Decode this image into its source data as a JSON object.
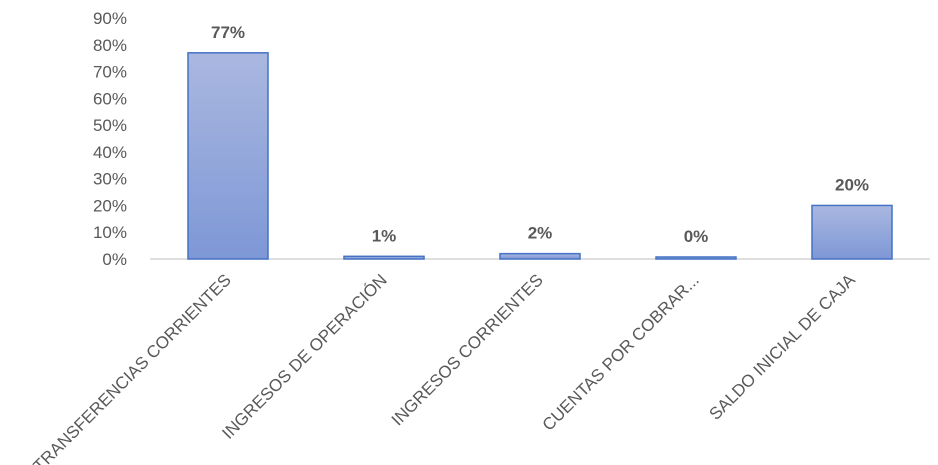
{
  "chart_data": {
    "type": "bar",
    "title": "",
    "xlabel": "",
    "ylabel": "",
    "categories": [
      "TRANSFERENCIAS CORRIENTES",
      "INGRESOS DE OPERACIÓN",
      "INGRESOS CORRIENTES",
      "CUENTAS POR COBRAR...",
      "SALDO INICIAL DE CAJA"
    ],
    "values": [
      77,
      1,
      2,
      0,
      20
    ],
    "data_labels": [
      "77%",
      "1%",
      "2%",
      "0%",
      "20%"
    ],
    "ylim": [
      0,
      90
    ],
    "yticks": [
      0,
      10,
      20,
      30,
      40,
      50,
      60,
      70,
      80,
      90
    ],
    "ytick_labels": [
      "0%",
      "10%",
      "20%",
      "30%",
      "40%",
      "50%",
      "60%",
      "70%",
      "80%",
      "90%"
    ],
    "grid": false,
    "legend": "none",
    "colors": {
      "bar_fill_top": "#aab8e0",
      "bar_fill_bottom": "#7e97d6",
      "bar_stroke": "#4472c4",
      "axis": "#bfbfbf",
      "text": "#595959"
    }
  }
}
